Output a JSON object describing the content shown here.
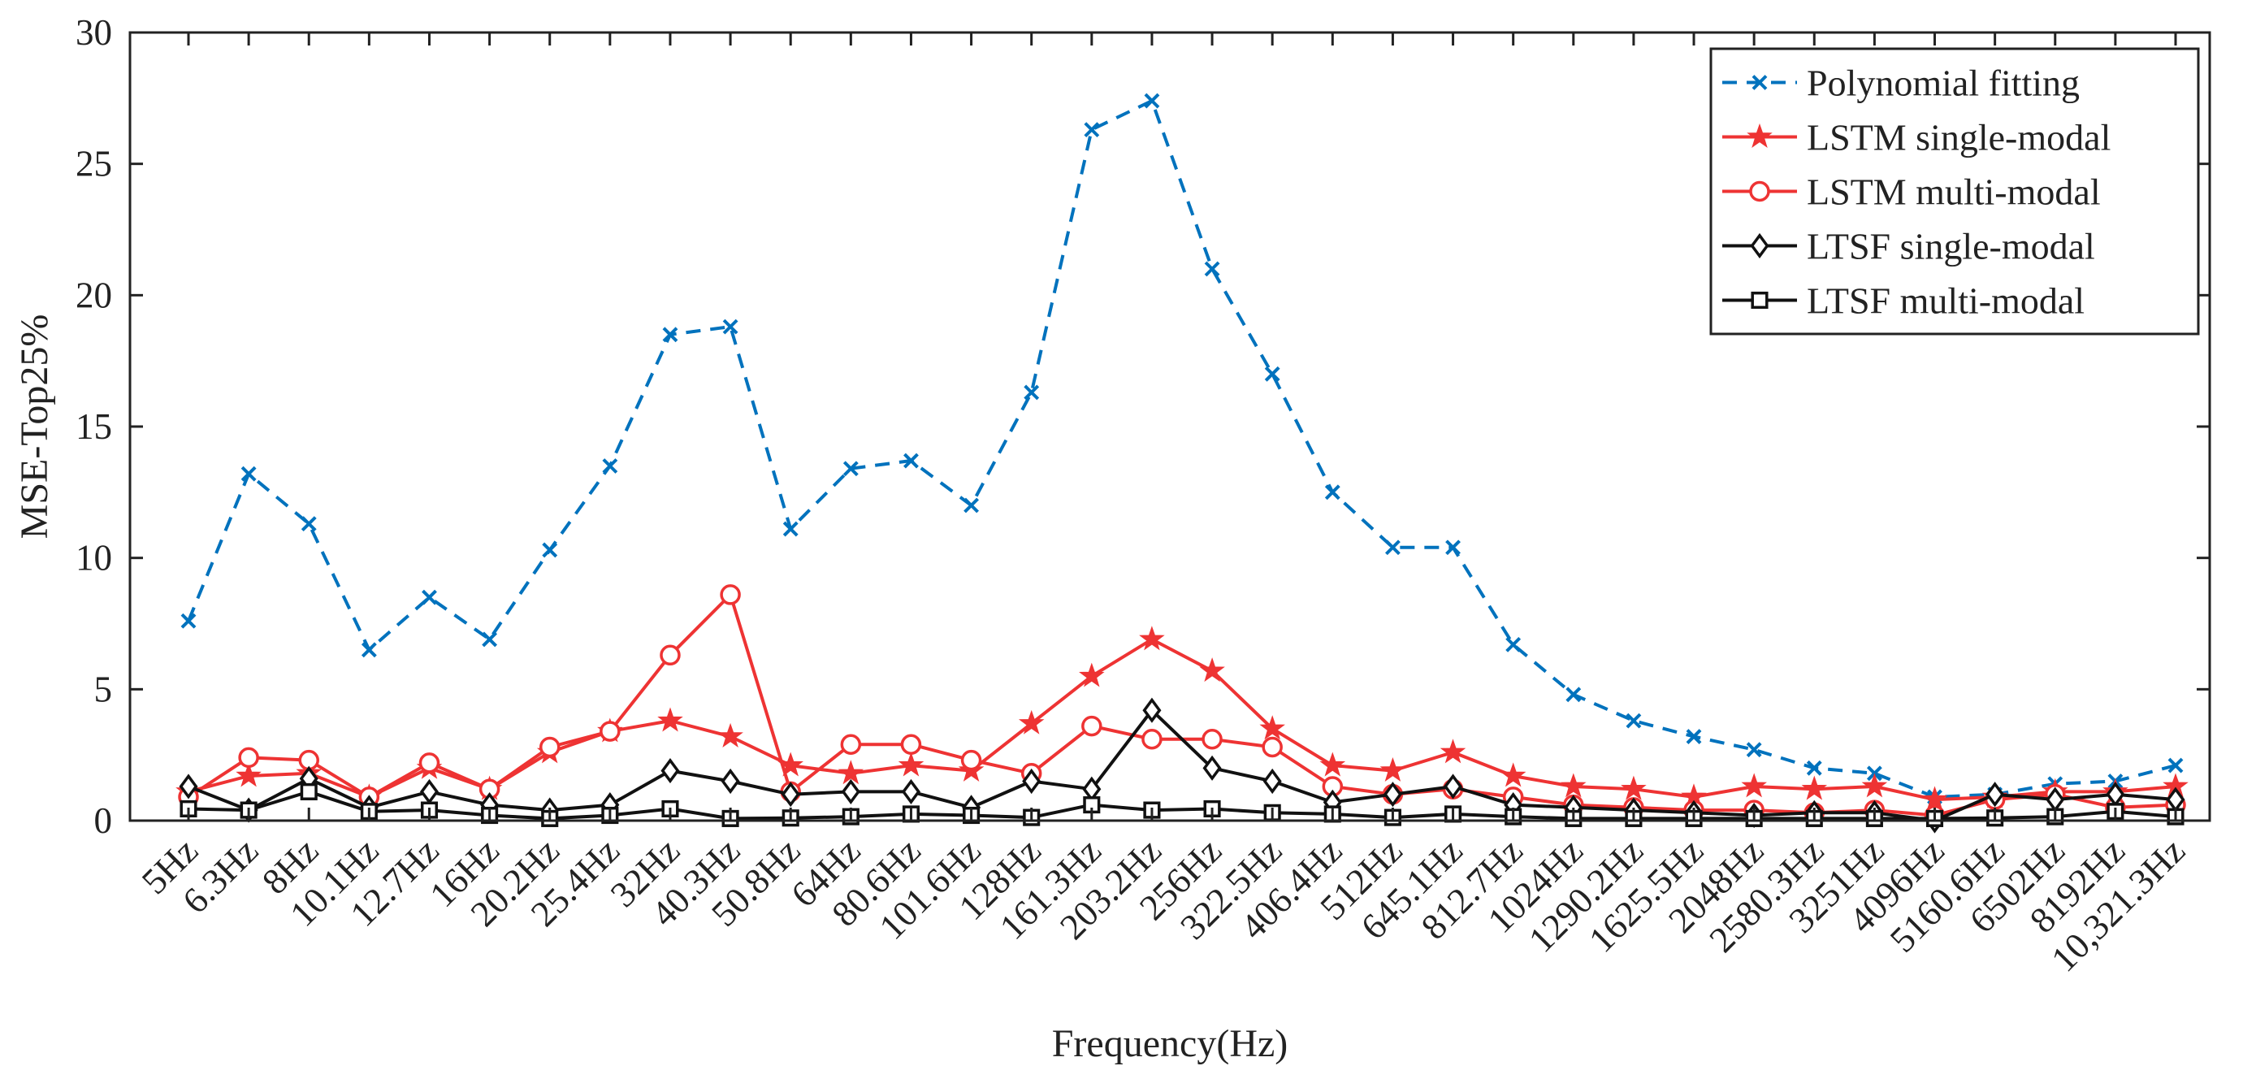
{
  "chart_data": {
    "type": "line",
    "title": "",
    "xlabel": "Frequency(Hz)",
    "ylabel": "MSE-Top25%",
    "ylim": [
      0,
      30
    ],
    "yticks": [
      0,
      5,
      10,
      15,
      20,
      25,
      30
    ],
    "grid": false,
    "legend_position": "top-right",
    "categories": [
      "5Hz",
      "6.3Hz",
      "8Hz",
      "10.1Hz",
      "12.7Hz",
      "16Hz",
      "20.2Hz",
      "25.4Hz",
      "32Hz",
      "40.3Hz",
      "50.8Hz",
      "64Hz",
      "80.6Hz",
      "101.6Hz",
      "128Hz",
      "161.3Hz",
      "203.2Hz",
      "256Hz",
      "322.5Hz",
      "406.4Hz",
      "512Hz",
      "645.1Hz",
      "812.7Hz",
      "1024Hz",
      "1290.2Hz",
      "1625.5Hz",
      "2048Hz",
      "2580.3Hz",
      "3251Hz",
      "4096Hz",
      "5160.6Hz",
      "6502Hz",
      "8192Hz",
      "10,321.3Hz"
    ],
    "series": [
      {
        "name": "Polynomial fitting",
        "color": "#0072BD",
        "marker": "x",
        "dash": "dashed",
        "values": [
          7.6,
          13.2,
          11.3,
          6.5,
          8.5,
          6.9,
          10.3,
          13.5,
          18.5,
          18.8,
          11.1,
          13.4,
          13.7,
          12.0,
          16.3,
          26.3,
          27.4,
          21.0,
          17.0,
          12.5,
          10.4,
          10.4,
          6.7,
          4.8,
          3.8,
          3.2,
          2.7,
          2.0,
          1.8,
          0.9,
          1.0,
          1.4,
          1.5,
          2.1
        ]
      },
      {
        "name": "LSTM single-modal",
        "color": "#EE3333",
        "marker": "star",
        "dash": "solid",
        "values": [
          1.1,
          1.7,
          1.8,
          0.9,
          2.0,
          1.2,
          2.6,
          3.4,
          3.8,
          3.2,
          2.1,
          1.8,
          2.1,
          1.9,
          3.7,
          5.5,
          6.9,
          5.7,
          3.5,
          2.1,
          1.9,
          2.6,
          1.7,
          1.3,
          1.2,
          0.9,
          1.3,
          1.2,
          1.3,
          0.8,
          0.9,
          1.1,
          1.1,
          1.3
        ]
      },
      {
        "name": "LSTM multi-modal",
        "color": "#EE3333",
        "marker": "circle",
        "dash": "solid",
        "values": [
          0.9,
          2.4,
          2.3,
          0.9,
          2.2,
          1.2,
          2.8,
          3.4,
          6.3,
          8.6,
          1.1,
          2.9,
          2.9,
          2.3,
          1.8,
          3.6,
          3.1,
          3.1,
          2.8,
          1.3,
          1.0,
          1.2,
          0.9,
          0.6,
          0.5,
          0.4,
          0.4,
          0.3,
          0.4,
          0.2,
          0.8,
          1.0,
          0.5,
          0.6
        ]
      },
      {
        "name": "LTSF single-modal",
        "color": "#111111",
        "marker": "diamond",
        "dash": "solid",
        "values": [
          1.3,
          0.4,
          1.6,
          0.5,
          1.1,
          0.6,
          0.4,
          0.6,
          1.9,
          1.5,
          1.0,
          1.1,
          1.1,
          0.5,
          1.5,
          1.2,
          4.2,
          2.0,
          1.5,
          0.7,
          1.0,
          1.3,
          0.6,
          0.5,
          0.4,
          0.3,
          0.2,
          0.3,
          0.3,
          0.0,
          1.0,
          0.8,
          1.0,
          0.8
        ]
      },
      {
        "name": "LTSF multi-modal",
        "color": "#111111",
        "marker": "square",
        "dash": "solid",
        "values": [
          0.45,
          0.4,
          1.1,
          0.35,
          0.4,
          0.2,
          0.08,
          0.2,
          0.45,
          0.08,
          0.1,
          0.15,
          0.25,
          0.2,
          0.12,
          0.6,
          0.4,
          0.45,
          0.3,
          0.25,
          0.12,
          0.25,
          0.15,
          0.08,
          0.08,
          0.08,
          0.08,
          0.08,
          0.08,
          0.08,
          0.1,
          0.15,
          0.35,
          0.15
        ]
      }
    ]
  }
}
